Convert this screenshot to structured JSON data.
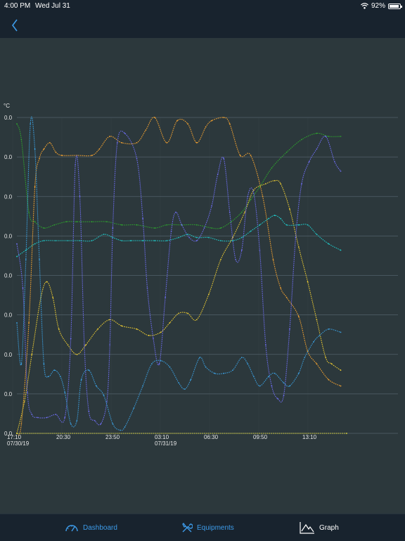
{
  "status_bar": {
    "time": "4:00 PM",
    "date": "Wed Jul 31",
    "battery": "92%",
    "battery_level": 0.92
  },
  "colors": {
    "background": "#2c383c",
    "bars": "#18232e",
    "accent": "#3d9be9",
    "grid": "#52606a",
    "series": [
      "#2ea02e",
      "#f0a030",
      "#e8c832",
      "#6b6be8",
      "#3a9ad8",
      "#20c4c4",
      "#e8e040"
    ]
  },
  "tab_bar": {
    "tabs": [
      {
        "label": "Dashboard",
        "icon": "speedometer-icon",
        "selected": false
      },
      {
        "label": "Equipments",
        "icon": "tools-icon",
        "selected": false
      },
      {
        "label": "Graph",
        "icon": "line-graph-icon",
        "selected": true
      }
    ]
  },
  "chart_data": {
    "type": "line",
    "ylabel": "°C",
    "y_tick_labels": [
      "0.0",
      "0.0",
      "0.0",
      "0.0",
      "0.0",
      "0.0",
      "0.0",
      "0.0",
      "0.0"
    ],
    "x_tick_labels": [
      {
        "time": "17:10",
        "date": "07/30/19"
      },
      {
        "time": "20:30",
        "date": ""
      },
      {
        "time": "23:50",
        "date": ""
      },
      {
        "time": "03:10",
        "date": "07/31/19"
      },
      {
        "time": "06:30",
        "date": ""
      },
      {
        "time": "09:50",
        "date": ""
      },
      {
        "time": "13:10",
        "date": ""
      }
    ],
    "grid": true,
    "legend": "none",
    "x_unit": "hours since 07/30/19 17:10",
    "y_unit": "fraction of axis height",
    "xlim": [
      0,
      22.0
    ],
    "ylim": [
      0,
      1
    ],
    "series": [
      {
        "color": "#2ea02e",
        "points": [
          [
            0,
            0.98
          ],
          [
            0.3,
            0.93
          ],
          [
            0.8,
            0.7
          ],
          [
            1.2,
            0.67
          ],
          [
            1.8,
            0.65
          ],
          [
            2.5,
            0.66
          ],
          [
            3.3,
            0.67
          ],
          [
            4,
            0.67
          ],
          [
            5,
            0.67
          ],
          [
            6,
            0.67
          ],
          [
            7,
            0.66
          ],
          [
            8,
            0.66
          ],
          [
            9.2,
            0.65
          ],
          [
            10,
            0.66
          ],
          [
            11,
            0.66
          ],
          [
            12,
            0.66
          ],
          [
            13,
            0.65
          ],
          [
            13.6,
            0.65
          ],
          [
            14.3,
            0.67
          ],
          [
            15,
            0.7
          ],
          [
            15.6,
            0.74
          ],
          [
            16.2,
            0.78
          ],
          [
            17,
            0.84
          ],
          [
            18,
            0.89
          ],
          [
            19,
            0.93
          ],
          [
            20,
            0.95
          ],
          [
            20.8,
            0.94
          ],
          [
            21.6,
            0.94
          ]
        ]
      },
      {
        "color": "#f0a030",
        "points": [
          [
            0,
            0.0
          ],
          [
            0.3,
            0.03
          ],
          [
            0.8,
            0.35
          ],
          [
            1.2,
            0.78
          ],
          [
            1.5,
            0.87
          ],
          [
            1.8,
            0.9
          ],
          [
            2.2,
            0.92
          ],
          [
            2.6,
            0.89
          ],
          [
            3,
            0.88
          ],
          [
            4,
            0.88
          ],
          [
            5,
            0.88
          ],
          [
            5.5,
            0.9
          ],
          [
            6.2,
            0.94
          ],
          [
            7,
            0.92
          ],
          [
            8,
            0.92
          ],
          [
            8.6,
            0.96
          ],
          [
            9.2,
            1.0
          ],
          [
            10,
            0.92
          ],
          [
            10.7,
            0.99
          ],
          [
            11.4,
            0.98
          ],
          [
            12,
            0.92
          ],
          [
            12.6,
            0.97
          ],
          [
            13,
            0.99
          ],
          [
            13.8,
            1.0
          ],
          [
            14.2,
            0.98
          ],
          [
            14.9,
            0.88
          ],
          [
            15.6,
            0.88
          ],
          [
            16.4,
            0.75
          ],
          [
            17.1,
            0.55
          ],
          [
            17.6,
            0.46
          ],
          [
            18,
            0.43
          ],
          [
            18.8,
            0.37
          ],
          [
            19.4,
            0.26
          ],
          [
            20,
            0.22
          ],
          [
            20.8,
            0.17
          ],
          [
            21.6,
            0.15
          ]
        ]
      },
      {
        "color": "#e8c832",
        "points": [
          [
            0,
            0.0
          ],
          [
            0.5,
            0.1
          ],
          [
            1,
            0.25
          ],
          [
            1.6,
            0.43
          ],
          [
            2,
            0.48
          ],
          [
            2.4,
            0.43
          ],
          [
            2.8,
            0.33
          ],
          [
            3.4,
            0.28
          ],
          [
            4,
            0.25
          ],
          [
            4.6,
            0.28
          ],
          [
            5.4,
            0.33
          ],
          [
            6.2,
            0.36
          ],
          [
            7,
            0.34
          ],
          [
            8,
            0.33
          ],
          [
            8.8,
            0.31
          ],
          [
            9.6,
            0.32
          ],
          [
            10.2,
            0.35
          ],
          [
            10.8,
            0.38
          ],
          [
            11.4,
            0.38
          ],
          [
            12,
            0.36
          ],
          [
            12.8,
            0.44
          ],
          [
            13.6,
            0.55
          ],
          [
            14.4,
            0.62
          ],
          [
            15.2,
            0.7
          ],
          [
            15.8,
            0.77
          ],
          [
            16.6,
            0.79
          ],
          [
            17.2,
            0.8
          ],
          [
            17.6,
            0.79
          ],
          [
            18.2,
            0.71
          ],
          [
            18.8,
            0.59
          ],
          [
            19.4,
            0.48
          ],
          [
            20,
            0.36
          ],
          [
            20.6,
            0.24
          ],
          [
            21,
            0.22
          ],
          [
            21.6,
            0.2
          ]
        ]
      },
      {
        "color": "#6b6be8",
        "points": [
          [
            0,
            0.6
          ],
          [
            0.4,
            0.46
          ],
          [
            0.7,
            0.13
          ],
          [
            1,
            0.06
          ],
          [
            1.4,
            0.05
          ],
          [
            2,
            0.05
          ],
          [
            2.6,
            0.06
          ],
          [
            3.2,
            0.05
          ],
          [
            3.6,
            0.3
          ],
          [
            3.9,
            0.85
          ],
          [
            4.2,
            0.75
          ],
          [
            4.5,
            0.28
          ],
          [
            4.8,
            0.07
          ],
          [
            5.2,
            0.04
          ],
          [
            5.6,
            0.03
          ],
          [
            6,
            0.1
          ],
          [
            6.2,
            0.28
          ],
          [
            6.4,
            0.65
          ],
          [
            6.7,
            0.92
          ],
          [
            7.2,
            0.95
          ],
          [
            8,
            0.87
          ],
          [
            8.4,
            0.68
          ],
          [
            8.7,
            0.46
          ],
          [
            9.1,
            0.3
          ],
          [
            9.5,
            0.22
          ],
          [
            9.9,
            0.43
          ],
          [
            10.3,
            0.64
          ],
          [
            10.6,
            0.7
          ],
          [
            11,
            0.66
          ],
          [
            11.5,
            0.62
          ],
          [
            12,
            0.61
          ],
          [
            12.5,
            0.65
          ],
          [
            13,
            0.72
          ],
          [
            13.4,
            0.82
          ],
          [
            13.8,
            0.87
          ],
          [
            14.2,
            0.7
          ],
          [
            14.6,
            0.55
          ],
          [
            15,
            0.58
          ],
          [
            15.4,
            0.75
          ],
          [
            15.8,
            0.76
          ],
          [
            16.2,
            0.58
          ],
          [
            16.6,
            0.28
          ],
          [
            17,
            0.15
          ],
          [
            17.4,
            0.11
          ],
          [
            17.8,
            0.12
          ],
          [
            18.2,
            0.33
          ],
          [
            18.6,
            0.62
          ],
          [
            19,
            0.79
          ],
          [
            19.5,
            0.86
          ],
          [
            20,
            0.9
          ],
          [
            20.6,
            0.94
          ],
          [
            21.2,
            0.86
          ],
          [
            21.6,
            0.83
          ]
        ]
      },
      {
        "color": "#3a9ad8",
        "points": [
          [
            0,
            0.35
          ],
          [
            0.3,
            0.22
          ],
          [
            0.6,
            0.55
          ],
          [
            0.9,
            0.98
          ],
          [
            1.2,
            0.9
          ],
          [
            1.5,
            0.55
          ],
          [
            1.8,
            0.22
          ],
          [
            2.1,
            0.18
          ],
          [
            2.5,
            0.2
          ],
          [
            2.9,
            0.18
          ],
          [
            3.2,
            0.13
          ],
          [
            3.6,
            0.03
          ],
          [
            4,
            0.04
          ],
          [
            4.3,
            0.17
          ],
          [
            4.8,
            0.2
          ],
          [
            5.3,
            0.15
          ],
          [
            5.8,
            0.12
          ],
          [
            6.4,
            0.03
          ],
          [
            6.9,
            0.01
          ],
          [
            7.2,
            0.02
          ],
          [
            7.8,
            0.08
          ],
          [
            8.4,
            0.15
          ],
          [
            9,
            0.22
          ],
          [
            9.6,
            0.23
          ],
          [
            10.2,
            0.21
          ],
          [
            10.8,
            0.16
          ],
          [
            11.2,
            0.14
          ],
          [
            11.6,
            0.17
          ],
          [
            12.2,
            0.24
          ],
          [
            12.6,
            0.21
          ],
          [
            13.2,
            0.19
          ],
          [
            13.8,
            0.19
          ],
          [
            14.4,
            0.2
          ],
          [
            15,
            0.24
          ],
          [
            15.4,
            0.22
          ],
          [
            15.8,
            0.18
          ],
          [
            16.2,
            0.15
          ],
          [
            16.8,
            0.18
          ],
          [
            17.2,
            0.19
          ],
          [
            17.8,
            0.16
          ],
          [
            18.2,
            0.15
          ],
          [
            18.8,
            0.19
          ],
          [
            19.2,
            0.24
          ],
          [
            19.8,
            0.29
          ],
          [
            20.2,
            0.31
          ],
          [
            20.8,
            0.33
          ],
          [
            21.6,
            0.32
          ]
        ]
      },
      {
        "color": "#20c4c4",
        "points": [
          [
            0,
            0.56
          ],
          [
            0.6,
            0.58
          ],
          [
            1.2,
            0.6
          ],
          [
            1.8,
            0.61
          ],
          [
            2.6,
            0.61
          ],
          [
            3.4,
            0.61
          ],
          [
            4.2,
            0.61
          ],
          [
            5,
            0.61
          ],
          [
            5.8,
            0.63
          ],
          [
            6.4,
            0.62
          ],
          [
            7,
            0.61
          ],
          [
            7.6,
            0.61
          ],
          [
            8.4,
            0.61
          ],
          [
            9.2,
            0.61
          ],
          [
            10,
            0.61
          ],
          [
            10.8,
            0.62
          ],
          [
            11.4,
            0.63
          ],
          [
            12,
            0.62
          ],
          [
            12.8,
            0.62
          ],
          [
            13.6,
            0.61
          ],
          [
            14.4,
            0.61
          ],
          [
            15,
            0.62
          ],
          [
            15.6,
            0.64
          ],
          [
            16.2,
            0.66
          ],
          [
            16.8,
            0.68
          ],
          [
            17.2,
            0.69
          ],
          [
            17.6,
            0.68
          ],
          [
            18,
            0.66
          ],
          [
            18.8,
            0.66
          ],
          [
            19.4,
            0.66
          ],
          [
            20,
            0.63
          ],
          [
            20.8,
            0.6
          ],
          [
            21.6,
            0.58
          ]
        ]
      },
      {
        "color": "#e8e040",
        "points": [
          [
            0,
            0.0
          ],
          [
            22.0,
            0.0
          ]
        ]
      }
    ]
  }
}
